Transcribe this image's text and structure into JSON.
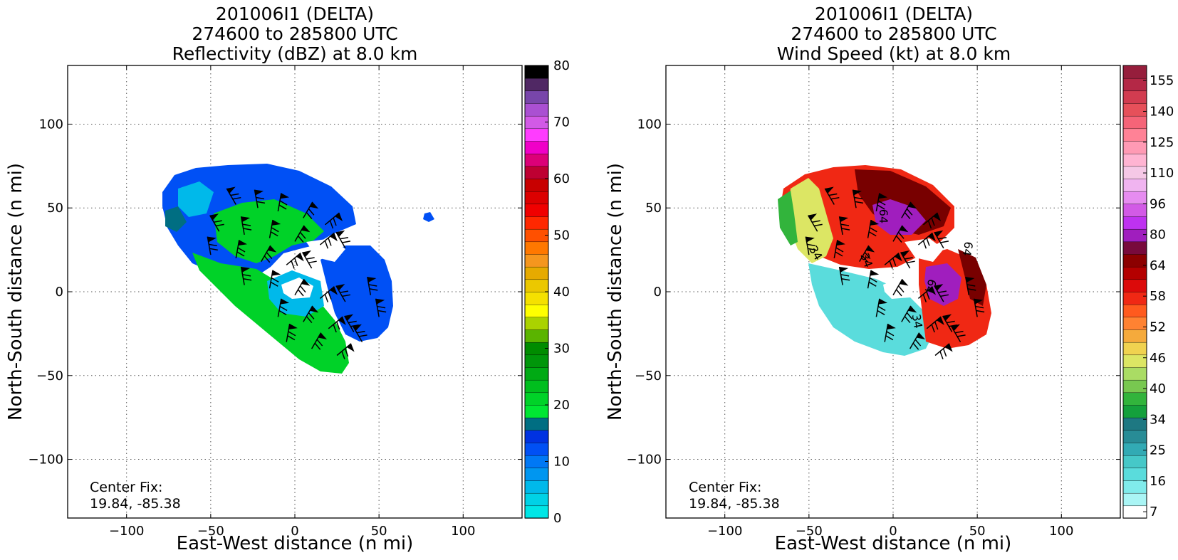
{
  "chart_data": [
    {
      "type": "heatmap",
      "title_lines": [
        "201006I1 (DELTA)",
        "274600 to 285800 UTC",
        "Reflectivity (dBZ) at 8.0 km"
      ],
      "xlabel": "East-West distance (n mi)",
      "ylabel": "North-South distance (n mi)",
      "xlim": [
        -135,
        135
      ],
      "ylim": [
        -135,
        135
      ],
      "xticks": [
        -100,
        -50,
        0,
        50,
        100
      ],
      "yticks": [
        -100,
        -50,
        0,
        50,
        100
      ],
      "grid": true,
      "annotation": [
        "Center Fix:",
        "19.84, -85.38"
      ],
      "colorbar": {
        "label_ticks": [
          0,
          10,
          20,
          30,
          40,
          50,
          60,
          70,
          80
        ],
        "range": [
          0,
          80
        ],
        "colors": [
          "#00e6e6",
          "#00d2e6",
          "#00b9ea",
          "#0096f0",
          "#0078f5",
          "#0050f5",
          "#0032e1",
          "#006e82",
          "#00e632",
          "#00d228",
          "#00be1e",
          "#00aa14",
          "#00960a",
          "#008c00",
          "#5ab400",
          "#aad200",
          "#ffff00",
          "#f5e100",
          "#ebc800",
          "#e6aa00",
          "#f5961e",
          "#ff7800",
          "#ff5000",
          "#ff2800",
          "#f00000",
          "#dc0000",
          "#c80000",
          "#be0032",
          "#dc0078",
          "#f000c8",
          "#ff3cff",
          "#d25ae6",
          "#aa50d2",
          "#7846aa",
          "#502864",
          "#000000"
        ]
      },
      "field_colors": {
        "low": "#0050f5",
        "mid": "#00d228",
        "light": "#00b9ea",
        "teal": "#006e82"
      },
      "wind_barbs": true
    },
    {
      "type": "heatmap",
      "title_lines": [
        "201006I1 (DELTA)",
        "274600 to 285800 UTC",
        "Wind Speed (kt) at 8.0 km"
      ],
      "xlabel": "East-West distance (n mi)",
      "ylabel": "North-South distance (n mi)",
      "xlim": [
        -135,
        135
      ],
      "ylim": [
        -135,
        135
      ],
      "xticks": [
        -100,
        -50,
        0,
        50,
        100
      ],
      "yticks": [
        -100,
        -50,
        0,
        50,
        100
      ],
      "grid": true,
      "annotation": [
        "Center Fix:",
        "19.84, -85.38"
      ],
      "contour_labels": [
        "34",
        "34",
        "34",
        "64",
        "64",
        "64"
      ],
      "colorbar": {
        "label_ticks": [
          "7",
          "16",
          "25",
          "34",
          "40",
          "46",
          "52",
          "58",
          "64",
          "80",
          "96",
          "110",
          "125",
          "140",
          "155"
        ],
        "colors": [
          "#ffffff",
          "#aaf5f5",
          "#80ebeb",
          "#5adcdc",
          "#46c8c8",
          "#32aab4",
          "#288c96",
          "#1e7882",
          "#14a03c",
          "#32b43c",
          "#78c850",
          "#aadc64",
          "#dce664",
          "#f0d250",
          "#f5aa3c",
          "#ff8232",
          "#ff5a1e",
          "#f02814",
          "#dc0a0a",
          "#b40000",
          "#8c0000",
          "#780a3c",
          "#a01ebe",
          "#be32f0",
          "#d25ae6",
          "#e68cf0",
          "#f0b4f0",
          "#f5c8e6",
          "#ffb4d2",
          "#ff9ab4",
          "#ff8296",
          "#f56478",
          "#e6505a",
          "#d23c50",
          "#b42846",
          "#961e3c"
        ]
      },
      "field_colors": {
        "outer": "#f02814",
        "inner": "#780000",
        "core": "#a01ebe",
        "weak": "#5adcdc",
        "mid": "#dce664"
      },
      "wind_barbs": true
    }
  ]
}
